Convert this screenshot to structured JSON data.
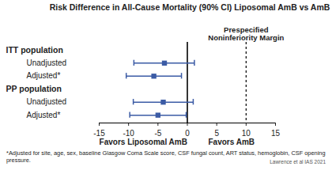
{
  "chart_data": {
    "type": "forest",
    "title": "Risk Difference in All-Cause Mortality (90% CI) Liposomal AmB vs AmB",
    "categories": [
      "ITT population",
      "Unadjusted",
      "Adjusted*",
      "PP population",
      "Unadjusted",
      "Adjusted*"
    ],
    "values": [
      null,
      -3.9,
      -5.7,
      null,
      -4.1,
      -5.0
    ],
    "ci_lower": [
      null,
      -9.1,
      -10.4,
      null,
      -9.2,
      -9.8
    ],
    "ci_upper": [
      null,
      1.2,
      -1.0,
      null,
      1.0,
      -0.2
    ],
    "color": "#3b5ba5",
    "marker": "square",
    "xlim": [
      -15,
      15
    ],
    "xticks": [
      -15,
      -10,
      -5,
      0,
      5,
      10,
      15
    ],
    "reference_lines": [
      {
        "value": 0,
        "line_style": "solid"
      },
      {
        "value": 10,
        "label": "Prespecified Noninferiority Margin",
        "line_style": "dashed"
      }
    ],
    "favors": [
      "Favors Liposomal AmB",
      "Favors AmB"
    ],
    "footnote": "*Adjusted for site, age, sex, baseline Glasgow Coma Scale score, CSF fungal count, ART status, hemoglobin, CSF opening pressure.",
    "source": "Lawrence et al IAS 2021"
  }
}
